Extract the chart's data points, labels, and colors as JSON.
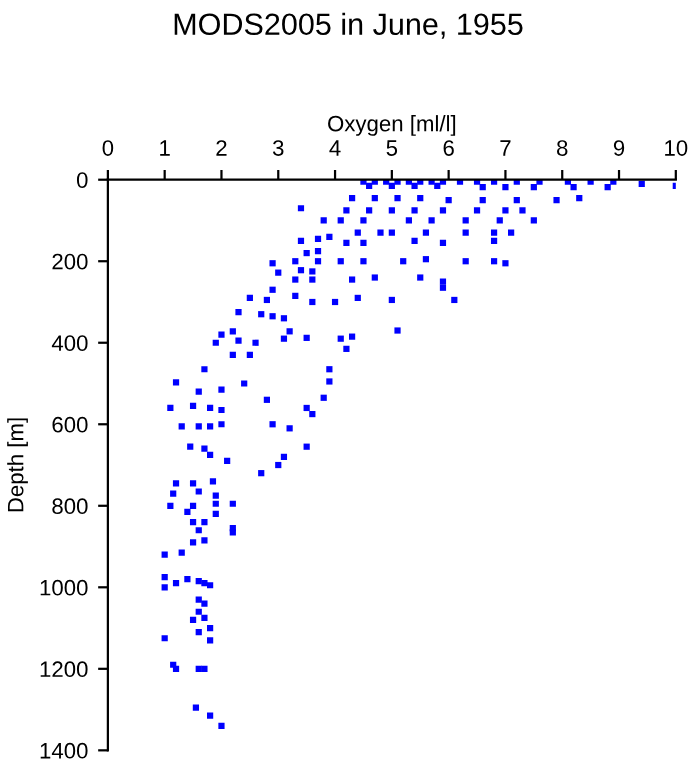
{
  "chart_data": {
    "type": "scatter",
    "title": "MODS2005 in June, 1955",
    "xlabel": "Oxygen [ml/l]",
    "ylabel": "Depth [m]",
    "x": [
      4.5,
      4.7,
      4.9,
      5.1,
      5.3,
      5.5,
      5.7,
      5.9,
      6.2,
      6.5,
      6.8,
      7.2,
      7.6,
      8.1,
      8.5,
      8.9,
      9.4,
      10.0,
      4.6,
      5.0,
      5.4,
      5.8,
      6.6,
      7.0,
      7.5,
      8.2,
      8.8,
      4.3,
      4.7,
      5.1,
      5.5,
      6.0,
      6.6,
      7.2,
      7.9,
      8.3,
      4.2,
      4.6,
      5.0,
      5.4,
      5.9,
      6.5,
      7.0,
      7.3,
      3.4,
      3.8,
      4.1,
      4.5,
      5.3,
      5.7,
      6.3,
      6.9,
      7.5,
      4.4,
      4.8,
      5.0,
      5.6,
      6.3,
      6.8,
      7.1,
      3.4,
      3.7,
      3.9,
      4.2,
      4.5,
      5.4,
      5.9,
      6.8,
      3.5,
      3.7,
      2.9,
      3.3,
      3.7,
      4.1,
      4.5,
      5.2,
      5.6,
      6.3,
      6.8,
      7.0,
      3.0,
      3.4,
      3.6,
      3.3,
      3.6,
      4.3,
      4.7,
      5.5,
      5.9,
      2.9,
      5.9,
      2.5,
      2.8,
      3.3,
      3.6,
      4.0,
      4.4,
      5.0,
      6.1,
      2.3,
      2.7,
      2.9,
      3.1,
      2.0,
      2.2,
      3.2,
      5.1,
      1.9,
      2.3,
      2.6,
      3.1,
      3.5,
      4.1,
      4.3,
      4.2,
      2.2,
      2.5,
      1.7,
      3.9,
      1.2,
      2.4,
      3.9,
      1.6,
      2.0,
      2.8,
      3.8,
      1.1,
      1.5,
      1.8,
      2.0,
      3.5,
      3.6,
      1.3,
      1.6,
      1.8,
      2.0,
      2.9,
      3.2,
      1.45,
      1.7,
      1.8,
      2.1,
      3.0,
      3.1,
      3.5,
      2.7,
      1.2,
      1.5,
      1.85,
      1.15,
      1.6,
      1.9,
      1.1,
      1.5,
      1.9,
      2.2,
      1.4,
      1.9,
      1.5,
      1.7,
      1.6,
      2.2,
      2.2,
      1.5,
      1.7,
      1.0,
      1.3,
      1.0,
      1.2,
      1.4,
      1.6,
      1.7,
      1.8,
      1.0,
      1.6,
      1.7,
      1.6,
      1.5,
      1.8,
      1.7,
      1.6,
      1.0,
      1.8,
      1.15,
      1.2,
      1.6,
      1.7,
      1.55,
      1.8,
      2.0
    ],
    "values": [
      5,
      5,
      5,
      5,
      5,
      5,
      5,
      5,
      5,
      5,
      5,
      5,
      5,
      5,
      5,
      5,
      10,
      15,
      15,
      15,
      15,
      15,
      18,
      18,
      18,
      18,
      18,
      45,
      45,
      45,
      45,
      50,
      50,
      50,
      50,
      45,
      75,
      75,
      75,
      75,
      75,
      75,
      75,
      75,
      70,
      100,
      100,
      100,
      100,
      100,
      100,
      100,
      100,
      130,
      130,
      130,
      130,
      130,
      130,
      130,
      150,
      145,
      140,
      155,
      155,
      150,
      155,
      150,
      180,
      175,
      205,
      200,
      200,
      200,
      200,
      200,
      195,
      200,
      200,
      205,
      228,
      222,
      225,
      245,
      245,
      245,
      240,
      240,
      250,
      270,
      265,
      290,
      295,
      285,
      300,
      300,
      290,
      295,
      295,
      325,
      330,
      335,
      340,
      380,
      372,
      372,
      370,
      400,
      395,
      400,
      390,
      388,
      390,
      385,
      415,
      430,
      430,
      465,
      465,
      497,
      500,
      495,
      520,
      515,
      540,
      535,
      560,
      555,
      560,
      565,
      560,
      575,
      605,
      605,
      605,
      600,
      600,
      610,
      655,
      660,
      675,
      690,
      700,
      680,
      655,
      720,
      745,
      745,
      740,
      770,
      765,
      775,
      800,
      800,
      795,
      795,
      815,
      820,
      840,
      840,
      860,
      865,
      855,
      890,
      885,
      920,
      915,
      975,
      990,
      980,
      985,
      990,
      995,
      1000,
      1030,
      1040,
      1060,
      1080,
      1100,
      1075,
      1110,
      1125,
      1130,
      1190,
      1200,
      1200,
      1200,
      1295,
      1315,
      1340
    ],
    "color": "#0000ff",
    "marker": "square",
    "grid": false,
    "xlim": [
      0,
      10
    ],
    "xticks": [
      0,
      1,
      2,
      3,
      4,
      5,
      6,
      7,
      8,
      9,
      10
    ],
    "ylim": [
      1400,
      0
    ],
    "yticks": [
      0,
      200,
      400,
      600,
      800,
      1000,
      1200,
      1400
    ]
  }
}
